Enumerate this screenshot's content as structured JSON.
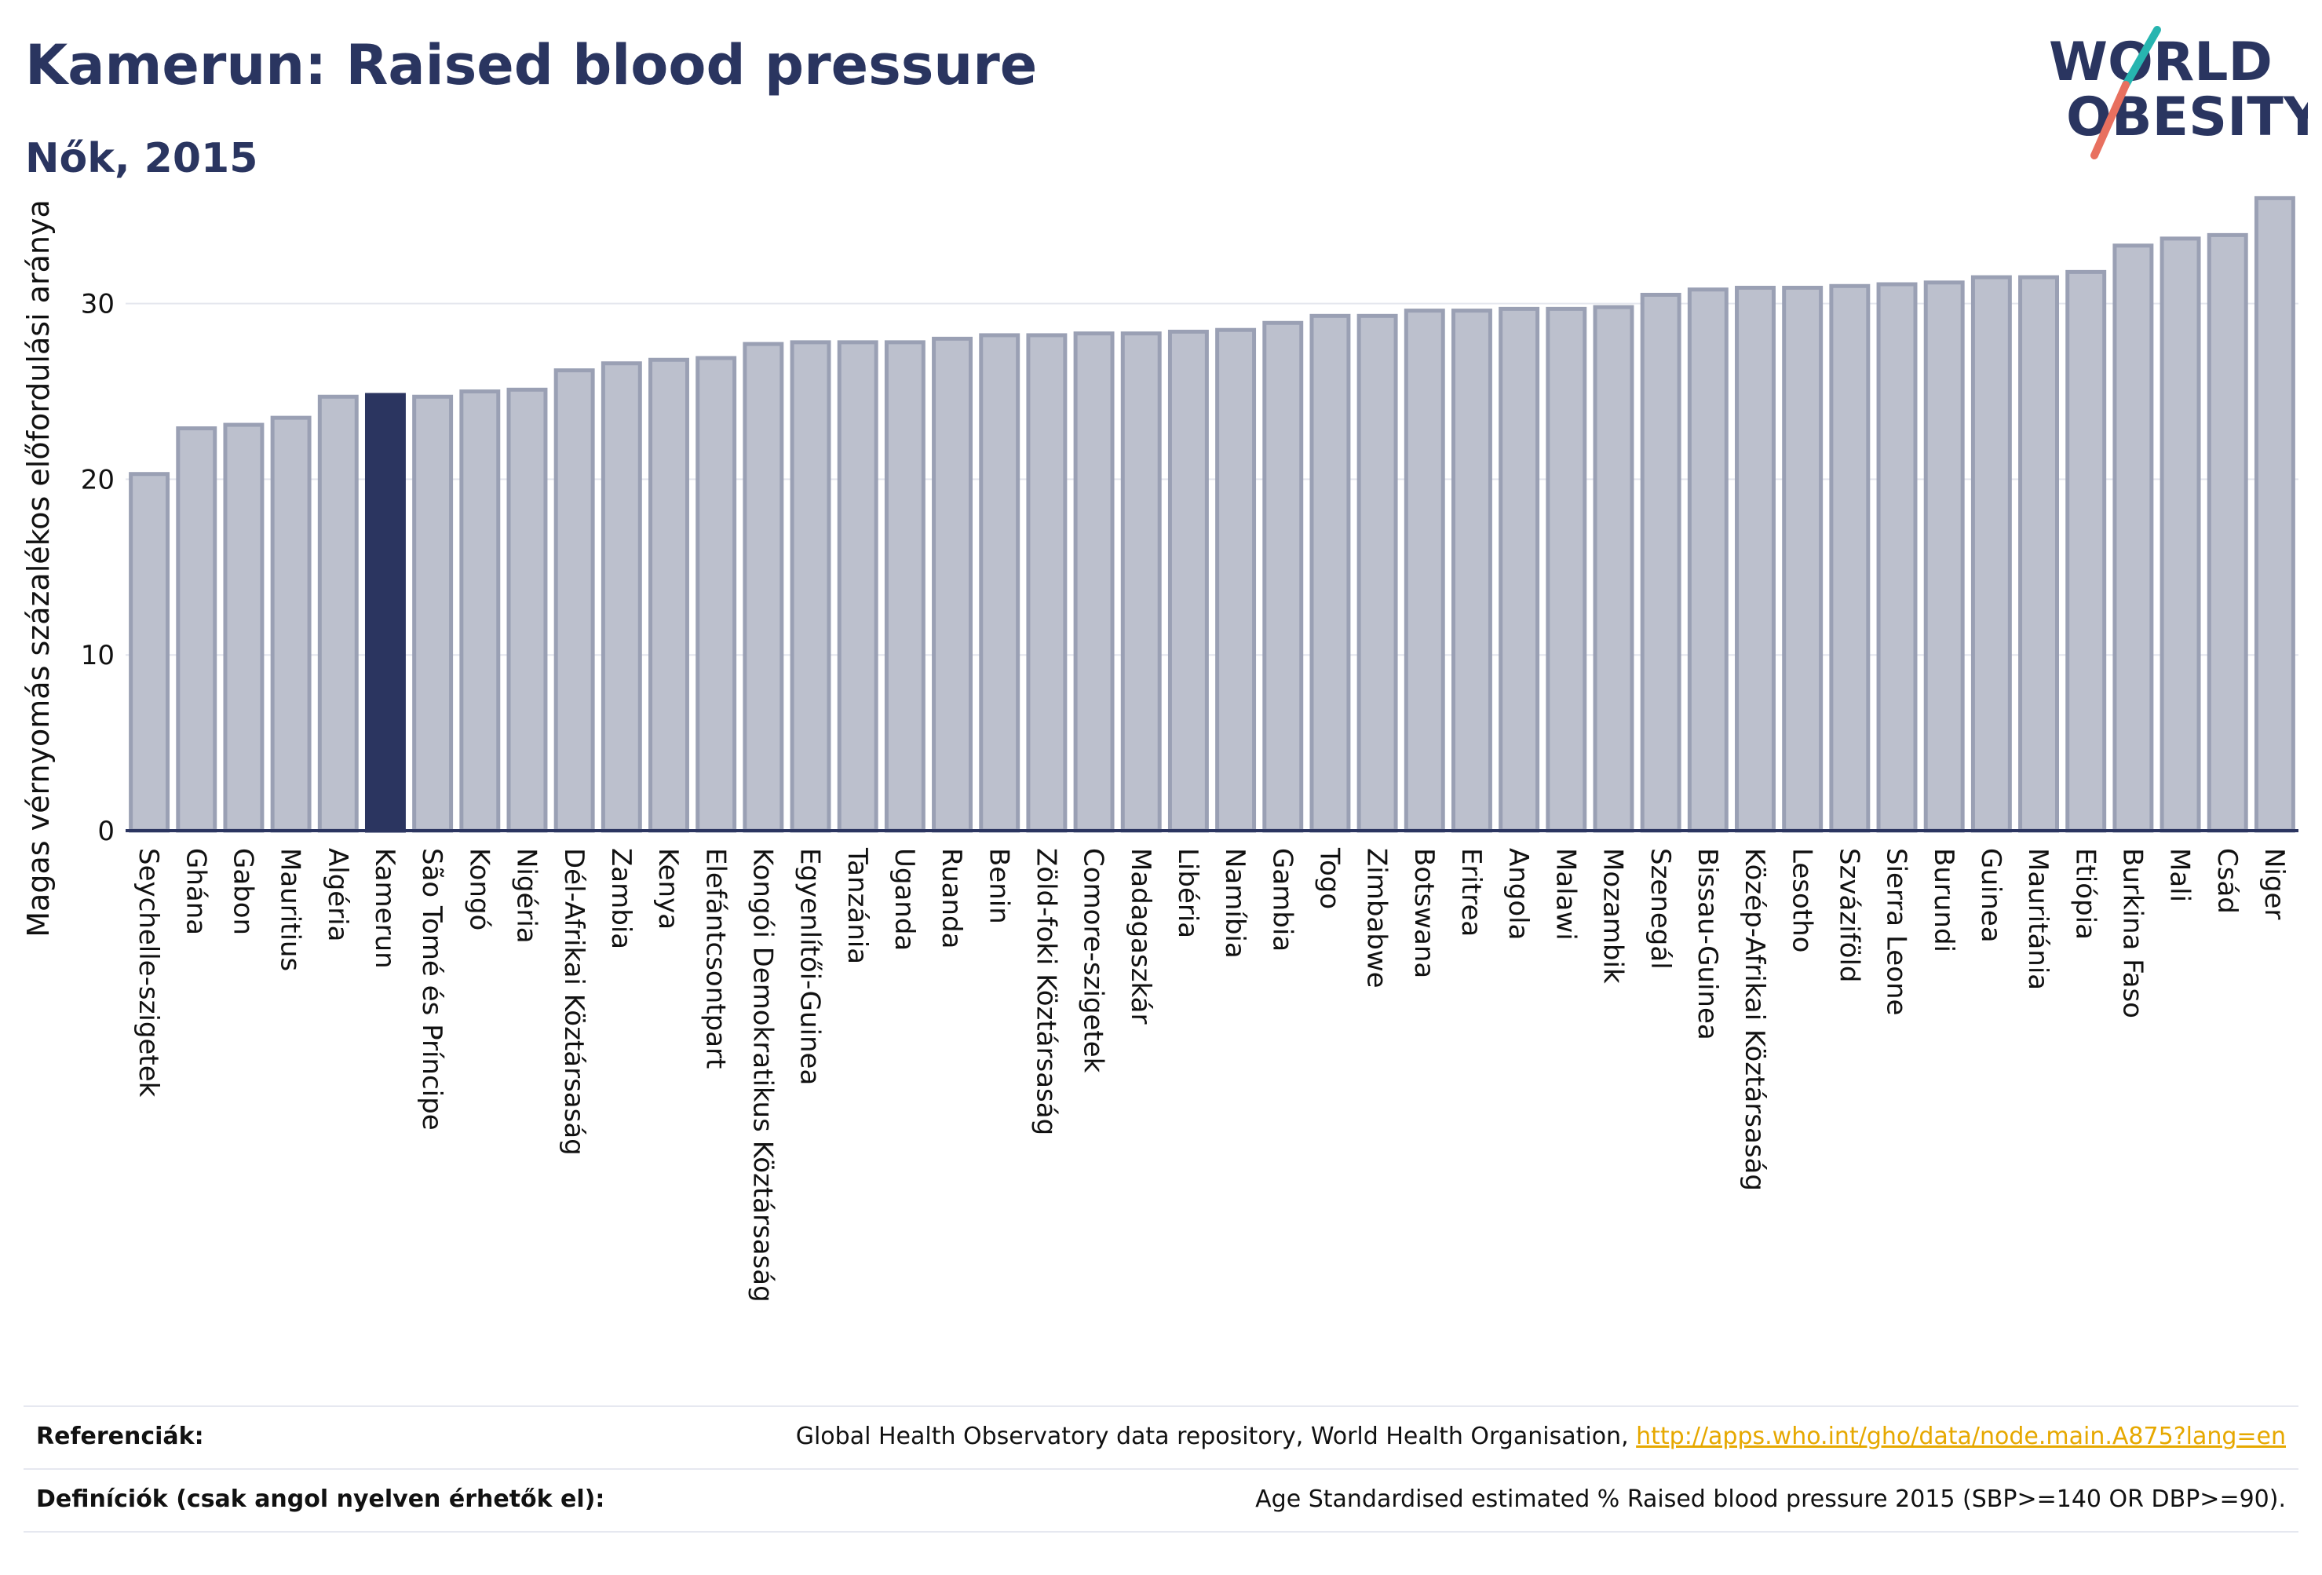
{
  "header": {
    "title": "Kamerun: Raised blood pressure",
    "subtitle": "Nők, 2015"
  },
  "logo": {
    "line1": "WORLD",
    "line2": "OBESITY"
  },
  "colors": {
    "highlight": "#2b3560",
    "bar": "#bcc0cd",
    "bar_stroke": "#9aa0b4",
    "text": "#2a3560",
    "link": "#e6a800"
  },
  "chart_data": {
    "type": "bar",
    "ylabel": "Magas vérnyomás százalékos előfordulási aránya",
    "ylim": [
      0,
      37
    ],
    "yticks": [
      0,
      10,
      20,
      30
    ],
    "grid": true,
    "highlight": "Kamerun",
    "categories": [
      "Seychelle-szigetek",
      "Ghána",
      "Gabon",
      "Mauritius",
      "Algéria",
      "Kamerun",
      "São Tomé és Príncipe",
      "Kongó",
      "Nigéria",
      "Dél-Afrikai Köztársaság",
      "Zambia",
      "Kenya",
      "Elefántcsontpart",
      "Kongói Demokratikus Köztársaság",
      "Egyenlítői-Guinea",
      "Tanzánia",
      "Uganda",
      "Ruanda",
      "Benin",
      "Zöld-foki Köztársaság",
      "Comore-szigetek",
      "Madagaszkár",
      "Libéria",
      "Namíbia",
      "Gambia",
      "Togo",
      "Zimbabwe",
      "Botswana",
      "Eritrea",
      "Angola",
      "Malawi",
      "Mozambik",
      "Szenegál",
      "Bissau-Guinea",
      "Közép-Afrikai Köztársaság",
      "Lesotho",
      "Szváziföld",
      "Sierra Leone",
      "Burundi",
      "Guinea",
      "Mauritánia",
      "Etiópia",
      "Burkina Faso",
      "Mali",
      "Csád",
      "Niger"
    ],
    "values": [
      20.3,
      22.9,
      23.1,
      23.5,
      24.7,
      24.8,
      24.7,
      25.0,
      25.1,
      26.2,
      26.6,
      26.8,
      26.9,
      27.7,
      27.8,
      27.8,
      27.8,
      28.0,
      28.2,
      28.2,
      28.3,
      28.3,
      28.4,
      28.5,
      28.9,
      29.3,
      29.3,
      29.6,
      29.6,
      29.7,
      29.7,
      29.8,
      30.5,
      30.8,
      30.9,
      30.9,
      31.0,
      31.1,
      31.2,
      31.5,
      31.5,
      31.8,
      33.3,
      33.7,
      33.9,
      36.0
    ]
  },
  "references": {
    "label": "Referenciák:",
    "text": "Global Health Observatory data repository, World Health Organisation, ",
    "link": "http://apps.who.int/gho/data/node.main.A875?lang=en"
  },
  "definitions": {
    "label": "Definíciók (csak angol nyelven érhetők el):",
    "text": "Age Standardised estimated % Raised blood pressure 2015 (SBP>=140 OR DBP>=90)."
  }
}
